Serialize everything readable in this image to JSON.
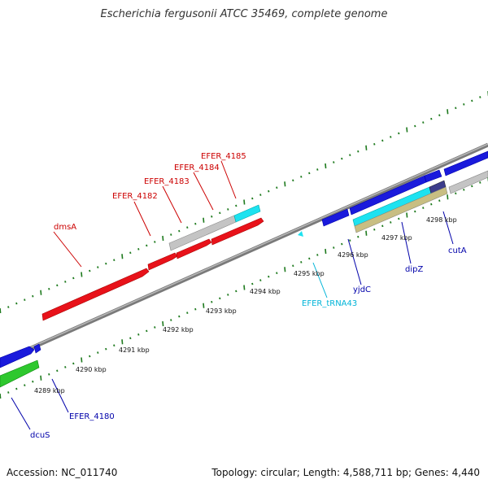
{
  "header": {
    "title": "Escherichia fergusonii ATCC 35469, complete genome"
  },
  "footer": {
    "accession": "Accession: NC_011740",
    "summary": "Topology: circular; Length: 4,588,711 bp; Genes: 4,440"
  },
  "scale_labels": [
    "4289 kbp",
    "4290 kbp",
    "4291 kbp",
    "4292 kbp",
    "4293 kbp",
    "4294 kbp",
    "4295 kbp",
    "4296 kbp",
    "4297 kbp",
    "4298 kbp"
  ],
  "gene_labels": {
    "dmsA": "dmsA",
    "efer4182": "EFER_4182",
    "efer4183": "EFER_4183",
    "efer4184": "EFER_4184",
    "efer4185": "EFER_4185",
    "efer4180": "EFER_4180",
    "dcuS": "dcuS",
    "trna43": "EFER_tRNA43",
    "yjdC": "yjdC",
    "dipZ": "dipZ",
    "cutA": "cutA"
  },
  "colors": {
    "red": "#e8121a",
    "blue": "#1a1adc",
    "grey": "#c4c4c4",
    "cyan": "#1de2f0",
    "green": "#2ec82e",
    "navy": "#3c3c8c",
    "khaki": "#c8be82",
    "backbone": "#808080",
    "tick": "#1e7a1e",
    "red_label": "#cc0000",
    "blue_label": "#0000aa",
    "cyan_label": "#00b4d8"
  }
}
